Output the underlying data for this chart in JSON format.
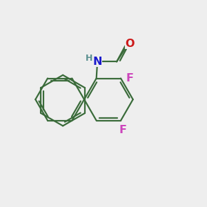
{
  "bg_color": "#eeeeee",
  "bond_color": "#3a6b3a",
  "bond_lw": 1.6,
  "atom_colors": {
    "N": "#1a1acc",
    "H": "#5a9090",
    "O": "#cc1a1a",
    "F": "#cc44bb",
    "C": "#3a6b3a"
  }
}
